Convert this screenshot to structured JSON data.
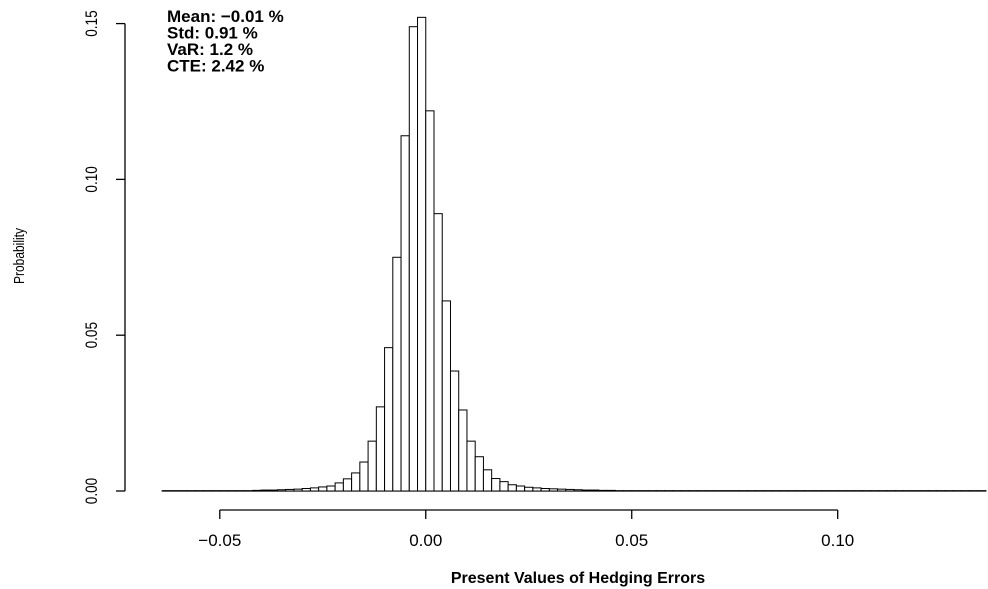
{
  "chart_data": {
    "type": "histogram",
    "xlabel": "Present Values of Hedging Errors",
    "ylabel": "Probability",
    "annotations": [
      "Mean:  −0.01 %",
      "Std:  0.91 %",
      "VaR:  1.2 %",
      "CTE:  2.42 %"
    ],
    "bins": [
      -0.064,
      -0.062,
      -0.06,
      -0.058,
      -0.056,
      -0.054,
      -0.052,
      -0.05,
      -0.048,
      -0.046,
      -0.044,
      -0.042,
      -0.04,
      -0.038,
      -0.036,
      -0.034,
      -0.032,
      -0.03,
      -0.028,
      -0.026,
      -0.024,
      -0.022,
      -0.02,
      -0.018,
      -0.016,
      -0.014,
      -0.012,
      -0.01,
      -0.008,
      -0.006,
      -0.004,
      -0.002,
      0,
      0.002,
      0.004,
      0.006,
      0.008,
      0.01,
      0.012,
      0.014,
      0.016,
      0.018,
      0.02,
      0.022,
      0.024,
      0.026,
      0.028,
      0.03,
      0.032,
      0.034,
      0.036,
      0.038,
      0.04,
      0.042,
      0.044,
      0.046,
      0.048,
      0.05,
      0.052,
      0.054,
      0.056,
      0.058,
      0.06,
      0.062,
      0.064,
      0.066,
      0.068,
      0.07,
      0.072,
      0.074,
      0.076,
      0.078,
      0.08,
      0.082,
      0.084,
      0.086,
      0.088,
      0.09,
      0.092,
      0.094,
      0.096,
      0.098,
      0.1,
      0.102,
      0.104,
      0.106,
      0.108,
      0.11,
      0.112,
      0.114,
      0.116,
      0.118,
      0.12,
      0.122,
      0.124,
      0.126,
      0.128,
      0.13,
      0.132,
      0.134,
      0.136
    ],
    "values": [
      0.0001,
      0.0001,
      0.0001,
      0.0001,
      0.0001,
      0.0001,
      0.0001,
      0.0001,
      0.0001,
      0.0001,
      0.0001,
      0.0002,
      0.0003,
      0.0003,
      0.0004,
      0.0005,
      0.0006,
      0.0008,
      0.001,
      0.0013,
      0.0016,
      0.0026,
      0.0039,
      0.0058,
      0.0093,
      0.016,
      0.027,
      0.046,
      0.075,
      0.114,
      0.149,
      0.152,
      0.122,
      0.089,
      0.061,
      0.0385,
      0.026,
      0.016,
      0.011,
      0.0068,
      0.004,
      0.003,
      0.002,
      0.0016,
      0.0012,
      0.001,
      0.0008,
      0.0007,
      0.0006,
      0.0005,
      0.0004,
      0.0003,
      0.0003,
      0.0002,
      0.0002,
      0.0001,
      0.0001,
      0.0001,
      0.0001,
      0.0001,
      0.0001,
      0.0001,
      0.0001,
      0.0001,
      0.0001,
      0.0001,
      0.0001,
      0.0001,
      0.0001,
      0.0001,
      0.0001,
      0.0001,
      0.0001,
      0.0001,
      0.0001,
      0.0001,
      0.0001,
      0.0001,
      0.0001,
      0.0001,
      0.0001,
      0.0001,
      0.0001,
      0.0001,
      0.0001,
      0.0001,
      0.0001,
      0.0001,
      0.0001,
      0.0001,
      0.0001,
      0.0001,
      0.0001,
      0.0001,
      0.0001,
      0.0001,
      0.0001,
      0.0001,
      0.0001,
      0.0001
    ],
    "color": "#ffffff",
    "xlim": [
      -0.065,
      0.136
    ],
    "ylim": [
      0,
      0.155
    ],
    "xticks": [
      {
        "value": -0.05,
        "label": "−0.05"
      },
      {
        "value": 0,
        "label": "0.00"
      },
      {
        "value": 0.05,
        "label": "0.05"
      },
      {
        "value": 0.1,
        "label": "0.10"
      }
    ],
    "yticks": [
      {
        "value": 0,
        "label": "0.00"
      },
      {
        "value": 0.05,
        "label": "0.05"
      },
      {
        "value": 0.1,
        "label": "0.10"
      },
      {
        "value": 0.15,
        "label": "0.15"
      }
    ],
    "grid": false
  }
}
